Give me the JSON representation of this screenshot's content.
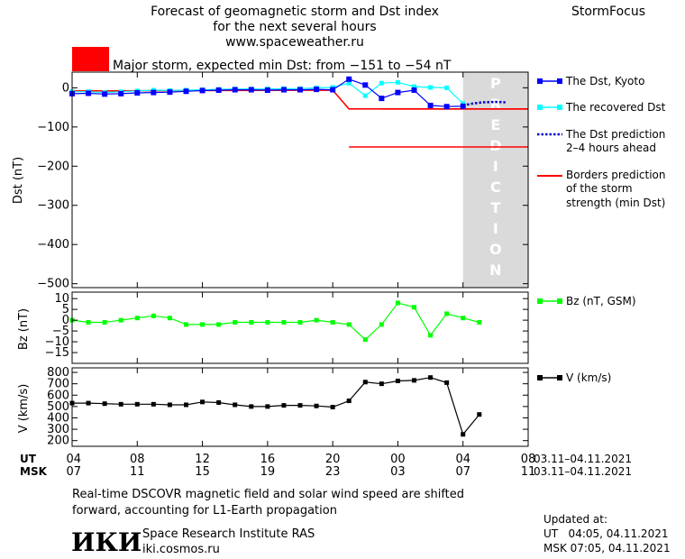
{
  "header": {
    "title_lines": [
      "Forecast of geomagnetic storm and Dst index",
      "for the next several hours",
      "www.spaceweather.ru"
    ],
    "brand": "StormFocus"
  },
  "status": {
    "text": "Major storm, expected min Dst: from −151 to −54 nT",
    "color": "#ff0000"
  },
  "footer": {
    "note_lines": [
      "Real-time DSCOVR magnetic field and solar wind speed are shifted",
      "forward, accounting for L1-Earth propagation"
    ],
    "logo_text": "ИКИ",
    "institute": "Space Research Institute RAS",
    "website": "iki.cosmos.ru",
    "updated_label": "Updated at:",
    "updated_ut": "UT   04:05, 04.11.2021",
    "updated_msk": "MSK 07:05, 04.11.2021"
  },
  "colors": {
    "dst": "#0000ff",
    "recovered": "#00ffff",
    "prediction": "#0000cc",
    "borders": "#ff0000",
    "bz": "#00ff00",
    "v": "#000000",
    "prediction_band": "#dadada"
  },
  "chart_data": [
    {
      "type": "line",
      "ylabel": "Dst (nT)",
      "ylim": [
        -510,
        40
      ],
      "yticks": [
        0,
        -100,
        -200,
        -300,
        -400,
        -500
      ],
      "ytick_labels": [
        "0",
        "−100",
        "−200",
        "−300",
        "−400",
        "−500"
      ],
      "prediction_band": {
        "x_from": 28,
        "x_to": 32,
        "label": "PREDICTION"
      },
      "series": [
        {
          "name": "The Dst, Kyoto",
          "color": "#0000ff",
          "x": [
            4,
            5,
            6,
            7,
            8,
            9,
            10,
            11,
            12,
            13,
            14,
            15,
            16,
            17,
            18,
            19,
            20,
            21,
            22,
            23,
            24,
            25,
            26,
            27,
            28
          ],
          "y": [
            -15,
            -14,
            -16,
            -15,
            -13,
            -12,
            -11,
            -9,
            -7,
            -6,
            -5,
            -5,
            -6,
            -5,
            -5,
            -4,
            -5,
            22,
            7,
            -27,
            -12,
            -6,
            -45,
            -48,
            -47
          ]
        },
        {
          "name": "The recovered Dst",
          "color": "#00ffff",
          "x": [
            4,
            5,
            6,
            7,
            8,
            9,
            10,
            11,
            12,
            13,
            14,
            15,
            16,
            17,
            18,
            19,
            20,
            21,
            22,
            23,
            24,
            25,
            26,
            27,
            28
          ],
          "y": [
            -10,
            -10,
            -12,
            -10,
            -8,
            -6,
            -7,
            -6,
            -5,
            -4,
            -3,
            -3,
            -3,
            -2,
            -2,
            0,
            1,
            12,
            -20,
            12,
            14,
            3,
            1,
            0,
            -40
          ]
        },
        {
          "name": "The Dst prediction",
          "name_line2": "2–4 hours ahead",
          "color": "#0000cc",
          "x": [
            28,
            28.6,
            29.2,
            30,
            30.6
          ],
          "y": [
            -45,
            -40,
            -37,
            -36,
            -37
          ]
        },
        {
          "name": "Borders prediction",
          "name_line2": "of the storm",
          "name_line3": "strength (min Dst)",
          "color": "#ff0000",
          "segments": [
            {
              "x": [
                4,
                20,
                21,
                32
              ],
              "y": [
                -8,
                -6,
                -54,
                -54
              ]
            },
            {
              "x": [
                23,
                32
              ],
              "y": [
                -54,
                -54
              ]
            },
            {
              "x": [
                21,
                32
              ],
              "y": [
                -151,
                -151
              ]
            }
          ]
        }
      ]
    },
    {
      "type": "line",
      "ylabel": "Bz (nT)",
      "ylim": [
        -20,
        13
      ],
      "yticks": [
        10,
        5,
        0,
        -5,
        -10,
        -15
      ],
      "ytick_labels": [
        "10",
        "5",
        "0",
        "−5",
        "−10",
        "−15"
      ],
      "series": [
        {
          "name": "Bz (nT, GSM)",
          "color": "#00ff00",
          "x": [
            4,
            5,
            6,
            7,
            8,
            9,
            10,
            11,
            12,
            13,
            14,
            15,
            16,
            17,
            18,
            19,
            20,
            21,
            22,
            23,
            24,
            25,
            26,
            27,
            28,
            29
          ],
          "y": [
            0,
            -1,
            -1,
            0,
            1,
            2,
            1,
            -2,
            -2,
            -2,
            -1,
            -1,
            -1,
            -1,
            -1,
            0,
            -1,
            -2,
            -9,
            -2,
            8,
            6,
            -7,
            3,
            1,
            -1
          ]
        }
      ]
    },
    {
      "type": "line",
      "ylabel": "V (km/s)",
      "ylim": [
        150,
        840
      ],
      "yticks": [
        800,
        700,
        600,
        500,
        400,
        300,
        200
      ],
      "ytick_labels": [
        "800",
        "700",
        "600",
        "500",
        "400",
        "300",
        "200"
      ],
      "series": [
        {
          "name": "V (km/s)",
          "color": "#000000",
          "x": [
            4,
            5,
            6,
            7,
            8,
            9,
            10,
            11,
            12,
            13,
            14,
            15,
            16,
            17,
            18,
            19,
            20,
            21,
            22,
            23,
            24,
            25,
            26,
            27,
            28,
            29
          ],
          "y": [
            530,
            530,
            525,
            520,
            520,
            520,
            515,
            515,
            540,
            535,
            515,
            500,
            500,
            510,
            510,
            505,
            495,
            550,
            715,
            700,
            725,
            730,
            755,
            710,
            255,
            430
          ]
        }
      ]
    }
  ],
  "x_axis": {
    "xlim": [
      4,
      32
    ],
    "tick_hours": [
      4,
      8,
      12,
      16,
      20,
      24,
      28,
      32
    ],
    "ut_row_label": "UT",
    "msk_row_label": "MSK",
    "ut_ticks": [
      "04",
      "08",
      "12",
      "16",
      "20",
      "00",
      "04",
      "08"
    ],
    "msk_ticks": [
      "07",
      "11",
      "15",
      "19",
      "23",
      "03",
      "07",
      "11"
    ],
    "ut_range": "03.11–04.11.2021",
    "msk_range": "03.11–04.11.2021"
  }
}
